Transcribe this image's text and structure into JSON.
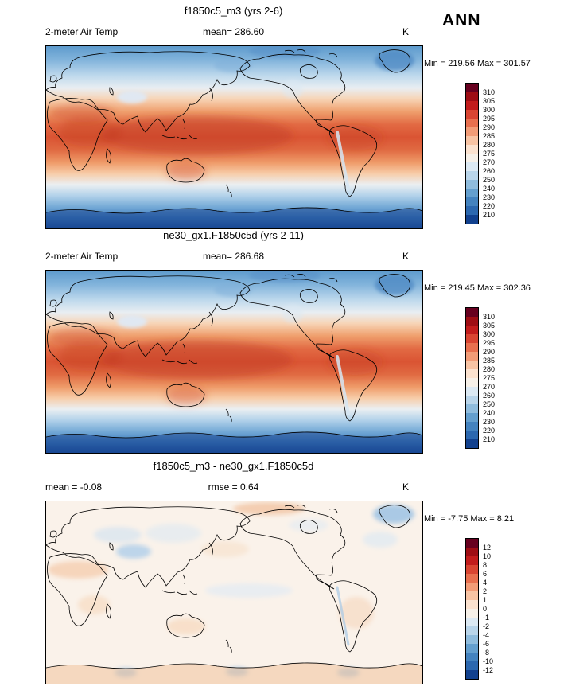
{
  "season_label": "ANN",
  "colorbar_colors": [
    "#67001f",
    "#9e0d14",
    "#c21c1c",
    "#d94532",
    "#e8704f",
    "#f29c77",
    "#f8c4a4",
    "#fbe2cf",
    "#f6f0e8",
    "#dce9f3",
    "#b9d5ea",
    "#8fbcdd",
    "#649fce",
    "#4483bf",
    "#2c68af",
    "#12418e"
  ],
  "panels": [
    {
      "title": "f1850c5_m3 (yrs 2-6)",
      "left_label": "2-meter Air Temp",
      "center_label": "mean= 286.60",
      "right_label": "K",
      "minmax_label": "Min = 219.56 Max = 301.57",
      "colorbar_labels": [
        "310",
        "305",
        "300",
        "295",
        "290",
        "285",
        "280",
        "275",
        "270",
        "260",
        "250",
        "240",
        "230",
        "220",
        "210"
      ]
    },
    {
      "title": "ne30_gx1.F1850c5d (yrs 2-11)",
      "left_label": "2-meter Air Temp",
      "center_label": "mean= 286.68",
      "right_label": "K",
      "minmax_label": "Min = 219.45 Max = 302.36",
      "colorbar_labels": [
        "310",
        "305",
        "300",
        "295",
        "290",
        "285",
        "280",
        "275",
        "270",
        "260",
        "250",
        "240",
        "230",
        "220",
        "210"
      ]
    },
    {
      "title": "f1850c5_m3 - ne30_gx1.F1850c5d",
      "left_label": "mean =  -0.08",
      "center_label": "rmse =   0.64",
      "right_label": "K",
      "minmax_label": "Min =  -7.75 Max =   8.21",
      "colorbar_labels": [
        "12",
        "10",
        "8",
        "6",
        "4",
        "2",
        "1",
        "0",
        "-1",
        "-2",
        "-4",
        "-6",
        "-8",
        "-10",
        "-12"
      ]
    }
  ],
  "chart_data": [
    {
      "type": "heatmap",
      "title": "f1850c5_m3 (yrs 2-6)",
      "variable": "2-meter Air Temp",
      "units": "K",
      "season": "ANN",
      "mean": 286.6,
      "min": 219.56,
      "max": 301.57,
      "colorbar_levels": [
        210,
        220,
        230,
        240,
        250,
        260,
        270,
        275,
        280,
        285,
        290,
        295,
        300,
        305,
        310
      ],
      "projection": "global latitude-longitude map",
      "legend_position": "right"
    },
    {
      "type": "heatmap",
      "title": "ne30_gx1.F1850c5d (yrs 2-11)",
      "variable": "2-meter Air Temp",
      "units": "K",
      "season": "ANN",
      "mean": 286.68,
      "min": 219.45,
      "max": 302.36,
      "colorbar_levels": [
        210,
        220,
        230,
        240,
        250,
        260,
        270,
        275,
        280,
        285,
        290,
        295,
        300,
        305,
        310
      ],
      "projection": "global latitude-longitude map",
      "legend_position": "right"
    },
    {
      "type": "heatmap",
      "title": "f1850c5_m3 - ne30_gx1.F1850c5d",
      "variable": "2-meter Air Temp difference",
      "units": "K",
      "season": "ANN",
      "mean": -0.08,
      "rmse": 0.64,
      "min": -7.75,
      "max": 8.21,
      "colorbar_levels": [
        -12,
        -10,
        -8,
        -6,
        -4,
        -2,
        -1,
        0,
        1,
        2,
        4,
        6,
        8,
        10,
        12
      ],
      "projection": "global latitude-longitude map",
      "legend_position": "right"
    }
  ]
}
